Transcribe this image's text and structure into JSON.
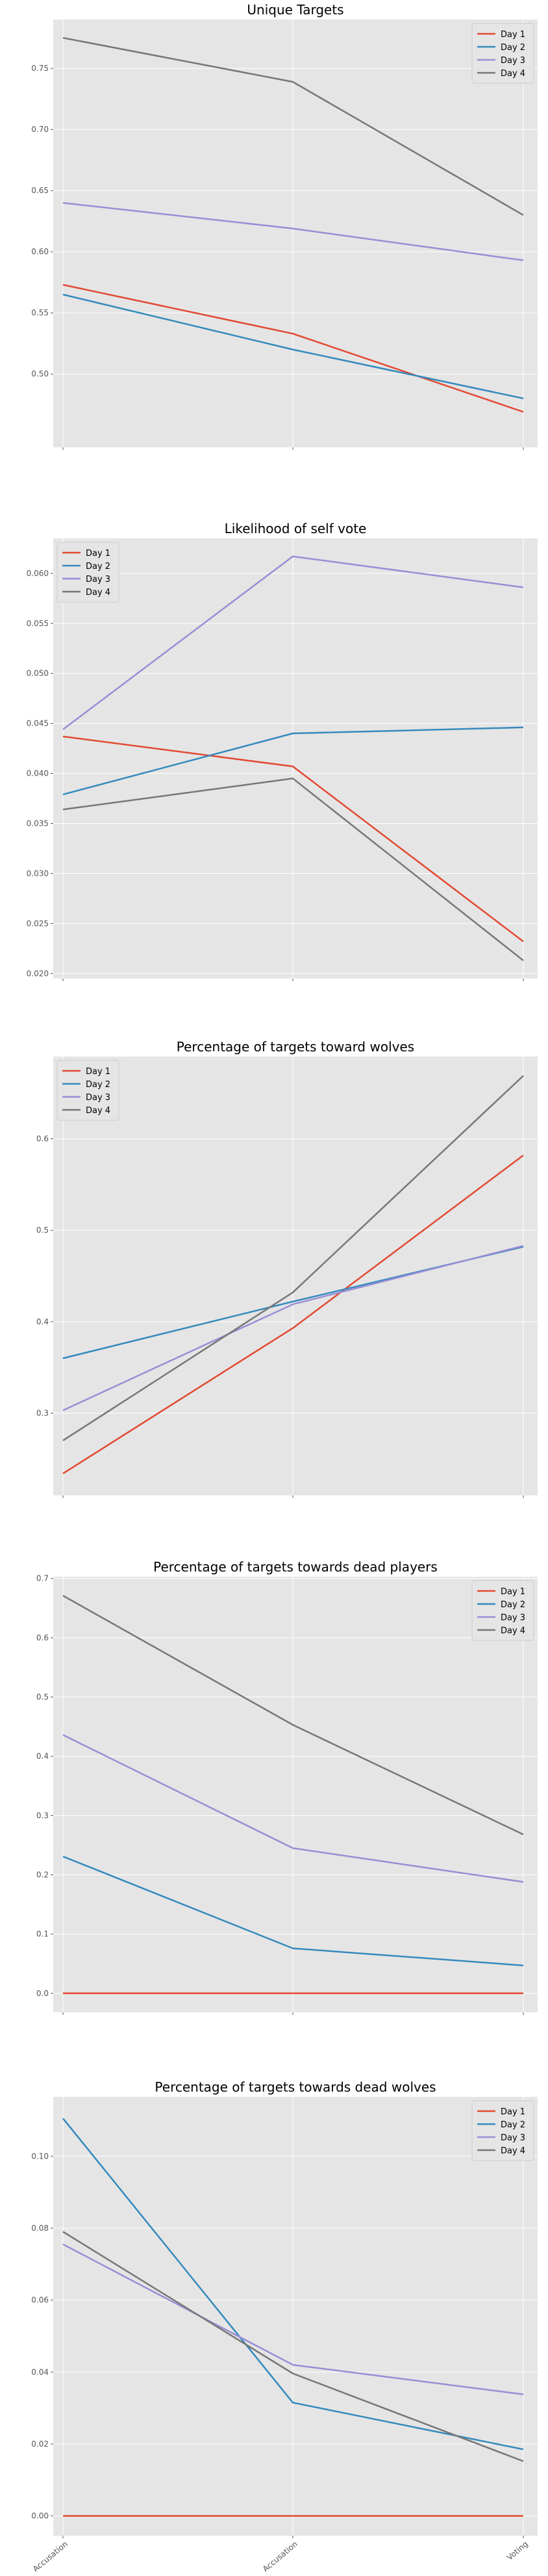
{
  "chart_data": [
    {
      "type": "line",
      "title": "Unique Targets",
      "categories": [
        "Accusation",
        "Accusation",
        "Voting"
      ],
      "show_xtick_labels": false,
      "ylim": [
        0.44,
        0.79
      ],
      "yticks": [
        "0.50",
        "0.55",
        "0.60",
        "0.65",
        "0.70",
        "0.75"
      ],
      "grid": true,
      "legend_position": "top-right",
      "series": [
        {
          "name": "Day 1",
          "color": "#e24a33",
          "values": [
            0.573,
            0.533,
            0.469
          ]
        },
        {
          "name": "Day 2",
          "color": "#348abd",
          "values": [
            0.565,
            0.52,
            0.48
          ]
        },
        {
          "name": "Day 3",
          "color": "#988ed5",
          "values": [
            0.64,
            0.619,
            0.593
          ]
        },
        {
          "name": "Day 4",
          "color": "#777777",
          "values": [
            0.775,
            0.739,
            0.63
          ]
        }
      ]
    },
    {
      "type": "line",
      "title": "Likelihood of self vote",
      "categories": [
        "Accusation",
        "Accusation",
        "Voting"
      ],
      "show_xtick_labels": false,
      "ylim": [
        0.0195,
        0.0635
      ],
      "yticks": [
        "0.020",
        "0.025",
        "0.030",
        "0.035",
        "0.040",
        "0.045",
        "0.050",
        "0.055",
        "0.060"
      ],
      "grid": true,
      "legend_position": "top-left",
      "series": [
        {
          "name": "Day 1",
          "color": "#e24a33",
          "values": [
            0.0437,
            0.0407,
            0.0232
          ]
        },
        {
          "name": "Day 2",
          "color": "#348abd",
          "values": [
            0.0379,
            0.044,
            0.0446
          ]
        },
        {
          "name": "Day 3",
          "color": "#988ed5",
          "values": [
            0.0444,
            0.0617,
            0.0586
          ]
        },
        {
          "name": "Day 4",
          "color": "#777777",
          "values": [
            0.0364,
            0.0395,
            0.0213
          ]
        }
      ]
    },
    {
      "type": "line",
      "title": "Percentage of targets toward wolves",
      "categories": [
        "Accusation",
        "Accusation",
        "Voting"
      ],
      "show_xtick_labels": false,
      "ylim": [
        0.21,
        0.69
      ],
      "yticks": [
        "0.3",
        "0.4",
        "0.5",
        "0.6"
      ],
      "grid": true,
      "legend_position": "top-left",
      "series": [
        {
          "name": "Day 1",
          "color": "#e24a33",
          "values": [
            0.234,
            0.393,
            0.582
          ]
        },
        {
          "name": "Day 2",
          "color": "#348abd",
          "values": [
            0.36,
            0.422,
            0.482
          ]
        },
        {
          "name": "Day 3",
          "color": "#988ed5",
          "values": [
            0.303,
            0.419,
            0.483
          ]
        },
        {
          "name": "Day 4",
          "color": "#777777",
          "values": [
            0.27,
            0.432,
            0.669
          ]
        }
      ]
    },
    {
      "type": "line",
      "title": "Percentage of targets towards dead players",
      "categories": [
        "Accusation",
        "Accusation",
        "Voting"
      ],
      "show_xtick_labels": false,
      "ylim": [
        -0.032,
        0.703
      ],
      "yticks": [
        "0.0",
        "0.1",
        "0.2",
        "0.3",
        "0.4",
        "0.5",
        "0.6",
        "0.7"
      ],
      "grid": true,
      "legend_position": "top-right",
      "series": [
        {
          "name": "Day 1",
          "color": "#e24a33",
          "values": [
            0.0,
            0.0,
            0.0
          ]
        },
        {
          "name": "Day 2",
          "color": "#348abd",
          "values": [
            0.231,
            0.076,
            0.047
          ]
        },
        {
          "name": "Day 3",
          "color": "#988ed5",
          "values": [
            0.436,
            0.245,
            0.188
          ]
        },
        {
          "name": "Day 4",
          "color": "#777777",
          "values": [
            0.671,
            0.453,
            0.268
          ]
        }
      ]
    },
    {
      "type": "line",
      "title": "Percentage of targets towards dead wolves",
      "categories": [
        "Accusation",
        "Accusation",
        "Voting"
      ],
      "show_xtick_labels": true,
      "ylim": [
        -0.0055,
        0.1165
      ],
      "yticks": [
        "0.00",
        "0.02",
        "0.04",
        "0.06",
        "0.08",
        "0.10"
      ],
      "grid": true,
      "legend_position": "top-right",
      "series": [
        {
          "name": "Day 1",
          "color": "#e24a33",
          "values": [
            0.0,
            0.0,
            0.0
          ]
        },
        {
          "name": "Day 2",
          "color": "#348abd",
          "values": [
            0.1105,
            0.0315,
            0.0185
          ]
        },
        {
          "name": "Day 3",
          "color": "#988ed5",
          "values": [
            0.0755,
            0.042,
            0.0338
          ]
        },
        {
          "name": "Day 4",
          "color": "#777777",
          "values": [
            0.079,
            0.0396,
            0.0152
          ]
        }
      ]
    }
  ]
}
